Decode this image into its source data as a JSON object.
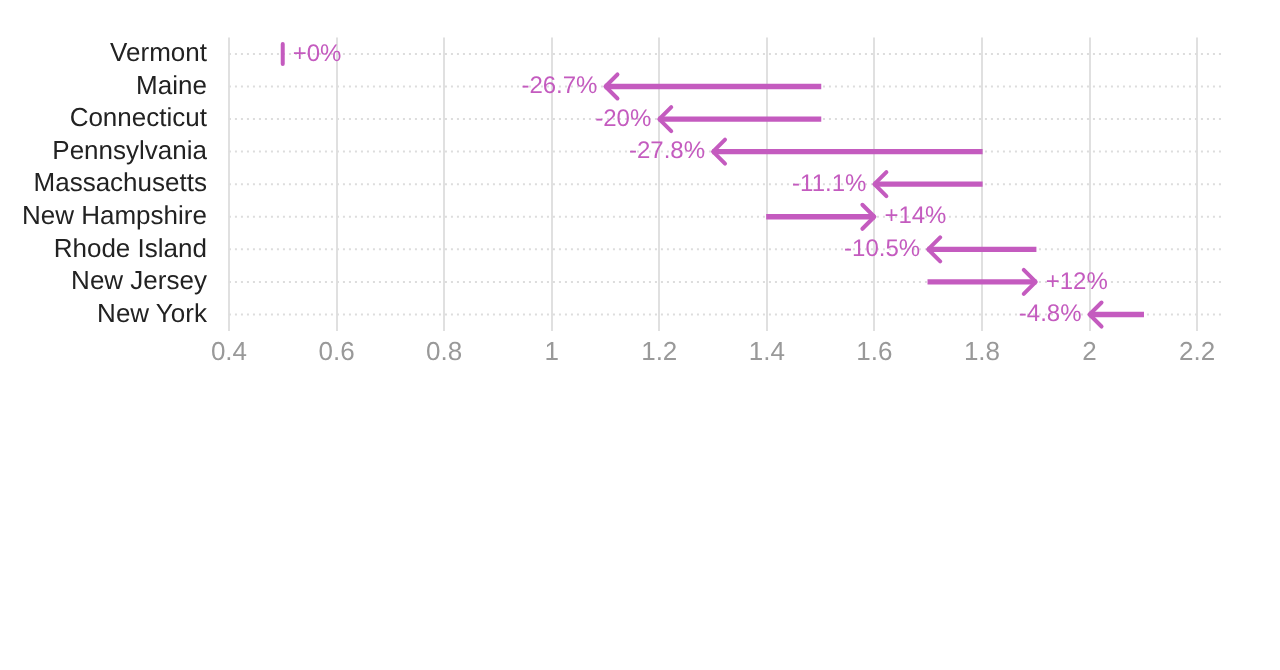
{
  "chart_data": {
    "type": "bar",
    "orientation": "horizontal",
    "categories": [
      "Vermont",
      "Maine",
      "Connecticut",
      "Pennsylvania",
      "Massachusetts",
      "New Hampshire",
      "Rhode Island",
      "New Jersey",
      "New York"
    ],
    "base": [
      0.5,
      1.5,
      1.5,
      1.8,
      1.8,
      1.4,
      1.9,
      1.7,
      2.1
    ],
    "values": [
      0,
      -0.4,
      -0.3,
      -0.5,
      -0.2,
      0.2,
      -0.2,
      0.2,
      -0.1
    ],
    "annotations": [
      {
        "text": "+0%",
        "x": 0.5,
        "y": "Vermont"
      },
      {
        "text": "-26.7%",
        "x": 1.1,
        "y": "Maine"
      },
      {
        "text": "-20%",
        "x": 1.2,
        "y": "Connecticut"
      },
      {
        "text": "-27.8%",
        "x": 1.3,
        "y": "Pennsylvania"
      },
      {
        "text": "-11.1%",
        "x": 1.6,
        "y": "Massachusetts"
      },
      {
        "text": "+14%",
        "x": 1.6,
        "y": "New Hampshire"
      },
      {
        "text": "-10.5%",
        "x": 1.7,
        "y": "Rhode Island"
      },
      {
        "text": "+12%",
        "x": 1.9,
        "y": "New Jersey"
      },
      {
        "text": "-4.8%",
        "x": 2,
        "y": "New York"
      }
    ],
    "color": "#c45bbf",
    "xlim": [
      0.4,
      2.25
    ],
    "xticks": [
      0.4,
      0.6,
      0.8,
      1,
      1.2,
      1.4,
      1.6,
      1.8,
      2,
      2.2
    ],
    "grid": true,
    "legend": false
  }
}
